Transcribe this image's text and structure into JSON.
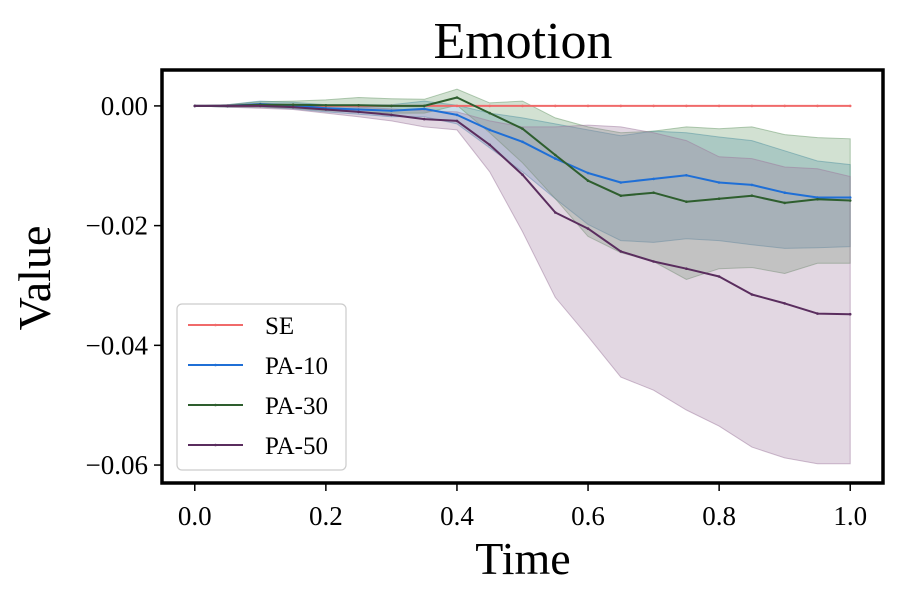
{
  "chart_data": {
    "type": "line",
    "title": "Emotion",
    "xlabel": "Time",
    "ylabel": "Value",
    "xlim": [
      -0.05,
      1.05
    ],
    "ylim": [
      -0.063,
      0.006
    ],
    "xticks": [
      0.0,
      0.2,
      0.4,
      0.6,
      0.8,
      1.0
    ],
    "xtick_labels": [
      "0.0",
      "0.2",
      "0.4",
      "0.6",
      "0.8",
      "1.0"
    ],
    "yticks": [
      0.0,
      -0.02,
      -0.04,
      -0.06
    ],
    "ytick_labels": [
      "0.00",
      "−0.02",
      "−0.04",
      "−0.06"
    ],
    "legend_position": "lower-left",
    "x": [
      0.0,
      0.05,
      0.1,
      0.15,
      0.2,
      0.25,
      0.3,
      0.35,
      0.4,
      0.45,
      0.5,
      0.55,
      0.6,
      0.65,
      0.7,
      0.75,
      0.8,
      0.85,
      0.9,
      0.95,
      1.0
    ],
    "series": [
      {
        "name": "SE",
        "color": "#f06a6a",
        "values": [
          0,
          0,
          0,
          0,
          0,
          0,
          0,
          0,
          0,
          0,
          0,
          0,
          0,
          0,
          0,
          0,
          0,
          0,
          0,
          0,
          0
        ],
        "lower": [
          0,
          0,
          0,
          0,
          0,
          0,
          0,
          0,
          0,
          0,
          0,
          0,
          0,
          0,
          0,
          0,
          0,
          0,
          0,
          0,
          0
        ],
        "upper": [
          0,
          0,
          0,
          0,
          0,
          0,
          0,
          0,
          0,
          0,
          0,
          0,
          0,
          0,
          0,
          0,
          0,
          0,
          0,
          0,
          0
        ]
      },
      {
        "name": "PA-10",
        "color": "#1f6fd6",
        "band_color": "#4a90b8",
        "values": [
          0,
          0,
          0.0003,
          0.0001,
          -0.0004,
          -0.0006,
          -0.0008,
          -0.0005,
          -0.0015,
          -0.004,
          -0.006,
          -0.0088,
          -0.0112,
          -0.0128,
          -0.0122,
          -0.0116,
          -0.0128,
          -0.0132,
          -0.0145,
          -0.0153,
          -0.0153
        ],
        "lower": [
          0,
          -0.0002,
          -0.0002,
          -0.0005,
          -0.001,
          -0.0014,
          -0.0018,
          -0.0018,
          -0.003,
          -0.007,
          -0.011,
          -0.0155,
          -0.0198,
          -0.0225,
          -0.0228,
          -0.0222,
          -0.0225,
          -0.0232,
          -0.0238,
          -0.0237,
          -0.0235
        ],
        "upper": [
          0,
          0.0002,
          0.0008,
          0.0006,
          0.0002,
          0.0002,
          0.0002,
          0.0008,
          0.0001,
          -0.0012,
          -0.002,
          -0.003,
          -0.004,
          -0.005,
          -0.0042,
          -0.0045,
          -0.0052,
          -0.0058,
          -0.0075,
          -0.0092,
          -0.0098
        ]
      },
      {
        "name": "PA-30",
        "color": "#2e5e2e",
        "band_color": "#6a9a6a",
        "values": [
          0,
          0,
          0.0002,
          0.0002,
          0.0001,
          0.0001,
          0,
          0,
          0.0014,
          -0.0012,
          -0.0038,
          -0.0082,
          -0.0125,
          -0.015,
          -0.0145,
          -0.016,
          -0.0155,
          -0.015,
          -0.0162,
          -0.0156,
          -0.0158
        ],
        "lower": [
          0,
          -0.0002,
          -0.0002,
          -0.0004,
          -0.0008,
          -0.001,
          -0.0012,
          -0.0012,
          0.0001,
          -0.0045,
          -0.0095,
          -0.0155,
          -0.0218,
          -0.0245,
          -0.026,
          -0.029,
          -0.0272,
          -0.027,
          -0.028,
          -0.0263,
          -0.0263
        ],
        "upper": [
          0,
          0.0002,
          0.0007,
          0.0008,
          0.001,
          0.0014,
          0.0012,
          0.0011,
          0.0028,
          0.0005,
          0.0008,
          -0.002,
          -0.0035,
          -0.0045,
          -0.0042,
          -0.0035,
          -0.0038,
          -0.0035,
          -0.0048,
          -0.0053,
          -0.0055
        ]
      },
      {
        "name": "PA-50",
        "color": "#5a2d5e",
        "band_color": "#9e7a9e",
        "values": [
          0,
          0,
          0,
          -0.0002,
          -0.0006,
          -0.001,
          -0.0015,
          -0.0022,
          -0.0025,
          -0.0065,
          -0.0115,
          -0.0178,
          -0.0205,
          -0.0243,
          -0.026,
          -0.0272,
          -0.0285,
          -0.0315,
          -0.033,
          -0.0347,
          -0.0348
        ],
        "lower": [
          0,
          -0.0002,
          -0.0004,
          -0.0006,
          -0.0012,
          -0.0018,
          -0.0025,
          -0.0035,
          -0.004,
          -0.011,
          -0.021,
          -0.032,
          -0.0385,
          -0.0453,
          -0.0475,
          -0.0508,
          -0.0535,
          -0.057,
          -0.0588,
          -0.0598,
          -0.0598
        ],
        "upper": [
          0,
          0.0002,
          0.0004,
          0.0002,
          0.0001,
          -0.0002,
          -0.0005,
          -0.0008,
          -0.001,
          -0.0025,
          -0.0035,
          -0.0035,
          -0.0032,
          -0.0035,
          -0.0045,
          -0.0058,
          -0.0085,
          -0.0088,
          -0.0102,
          -0.0105,
          -0.0118
        ]
      }
    ]
  }
}
